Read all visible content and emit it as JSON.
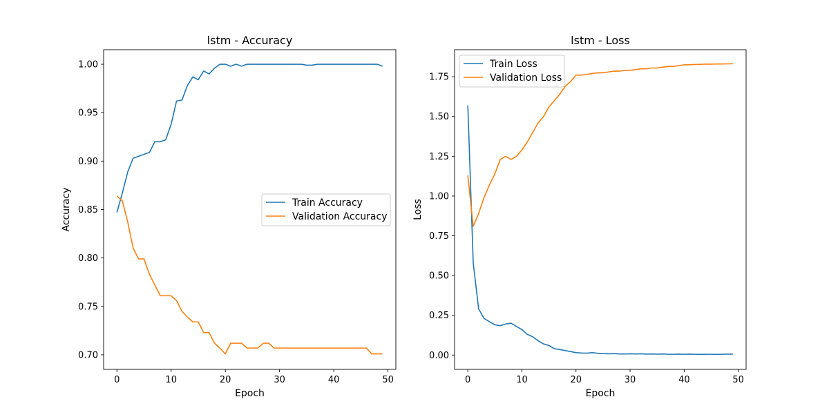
{
  "chart_data": [
    {
      "type": "line",
      "title": "lstm - Accuracy",
      "xlabel": "Epoch",
      "ylabel": "Accuracy",
      "xlim": [
        -2.45,
        51.45
      ],
      "ylim": [
        0.685,
        1.015
      ],
      "xticks": [
        0,
        10,
        20,
        30,
        40,
        50
      ],
      "xtick_labels": [
        "0",
        "10",
        "20",
        "30",
        "40",
        "50"
      ],
      "yticks": [
        0.7,
        0.75,
        0.8,
        0.85,
        0.9,
        0.95,
        1.0
      ],
      "ytick_labels": [
        "0.70",
        "0.75",
        "0.80",
        "0.85",
        "0.90",
        "0.95",
        "1.00"
      ],
      "grid": false,
      "legend_position": "center-right",
      "x": [
        0,
        1,
        2,
        3,
        4,
        5,
        6,
        7,
        8,
        9,
        10,
        11,
        12,
        13,
        14,
        15,
        16,
        17,
        18,
        19,
        20,
        21,
        22,
        23,
        24,
        25,
        26,
        27,
        28,
        29,
        30,
        31,
        32,
        33,
        34,
        35,
        36,
        37,
        38,
        39,
        40,
        41,
        42,
        43,
        44,
        45,
        46,
        47,
        48,
        49
      ],
      "series": [
        {
          "name": "Train Accuracy",
          "color": "#1f77b4",
          "values": [
            0.847,
            0.867,
            0.889,
            0.903,
            0.905,
            0.907,
            0.909,
            0.92,
            0.92,
            0.922,
            0.938,
            0.962,
            0.963,
            0.978,
            0.987,
            0.984,
            0.993,
            0.99,
            0.996,
            1.0,
            1.0,
            0.998,
            1.0,
            0.998,
            1.0,
            1.0,
            1.0,
            1.0,
            1.0,
            1.0,
            1.0,
            1.0,
            1.0,
            1.0,
            1.0,
            0.999,
            0.999,
            1.0,
            1.0,
            1.0,
            1.0,
            1.0,
            1.0,
            1.0,
            1.0,
            1.0,
            1.0,
            1.0,
            1.0,
            0.998
          ]
        },
        {
          "name": "Validation Accuracy",
          "color": "#ff7f0e",
          "values": [
            0.864,
            0.859,
            0.837,
            0.81,
            0.799,
            0.799,
            0.783,
            0.772,
            0.761,
            0.761,
            0.761,
            0.756,
            0.745,
            0.739,
            0.734,
            0.734,
            0.723,
            0.723,
            0.712,
            0.707,
            0.701,
            0.712,
            0.712,
            0.712,
            0.707,
            0.707,
            0.707,
            0.712,
            0.712,
            0.707,
            0.707,
            0.707,
            0.707,
            0.707,
            0.707,
            0.707,
            0.707,
            0.707,
            0.707,
            0.707,
            0.707,
            0.707,
            0.707,
            0.707,
            0.707,
            0.707,
            0.707,
            0.701,
            0.701,
            0.701
          ]
        }
      ]
    },
    {
      "type": "line",
      "title": "lstm - Loss",
      "xlabel": "Epoch",
      "ylabel": "Loss",
      "xlim": [
        -2.45,
        51.45
      ],
      "ylim": [
        -0.09,
        1.92
      ],
      "xticks": [
        0,
        10,
        20,
        30,
        40,
        50
      ],
      "xtick_labels": [
        "0",
        "10",
        "20",
        "30",
        "40",
        "50"
      ],
      "yticks": [
        0.0,
        0.25,
        0.5,
        0.75,
        1.0,
        1.25,
        1.5,
        1.75
      ],
      "ytick_labels": [
        "0.00",
        "0.25",
        "0.50",
        "0.75",
        "1.00",
        "1.25",
        "1.50",
        "1.75"
      ],
      "grid": false,
      "legend_position": "top-left",
      "x": [
        0,
        1,
        2,
        3,
        4,
        5,
        6,
        7,
        8,
        9,
        10,
        11,
        12,
        13,
        14,
        15,
        16,
        17,
        18,
        19,
        20,
        21,
        22,
        23,
        24,
        25,
        26,
        27,
        28,
        29,
        30,
        31,
        32,
        33,
        34,
        35,
        36,
        37,
        38,
        39,
        40,
        41,
        42,
        43,
        44,
        45,
        46,
        47,
        48,
        49
      ],
      "series": [
        {
          "name": "Train Loss",
          "color": "#1f77b4",
          "values": [
            1.57,
            0.58,
            0.29,
            0.23,
            0.21,
            0.19,
            0.185,
            0.195,
            0.2,
            0.18,
            0.16,
            0.13,
            0.115,
            0.09,
            0.07,
            0.06,
            0.04,
            0.035,
            0.028,
            0.022,
            0.015,
            0.013,
            0.012,
            0.015,
            0.011,
            0.009,
            0.008,
            0.009,
            0.007,
            0.007,
            0.008,
            0.007,
            0.008,
            0.006,
            0.007,
            0.006,
            0.007,
            0.005,
            0.005,
            0.006,
            0.005,
            0.006,
            0.005,
            0.004,
            0.005,
            0.005,
            0.004,
            0.005,
            0.006,
            0.006
          ]
        },
        {
          "name": "Validation Loss",
          "color": "#ff7f0e",
          "values": [
            1.13,
            0.81,
            0.89,
            0.99,
            1.07,
            1.14,
            1.23,
            1.25,
            1.23,
            1.25,
            1.29,
            1.34,
            1.4,
            1.46,
            1.5,
            1.56,
            1.6,
            1.64,
            1.69,
            1.72,
            1.76,
            1.76,
            1.765,
            1.77,
            1.775,
            1.775,
            1.78,
            1.785,
            1.785,
            1.79,
            1.79,
            1.795,
            1.8,
            1.8,
            1.805,
            1.805,
            1.81,
            1.815,
            1.815,
            1.82,
            1.825,
            1.826,
            1.827,
            1.828,
            1.829,
            1.829,
            1.83,
            1.83,
            1.831,
            1.832
          ]
        }
      ]
    }
  ]
}
